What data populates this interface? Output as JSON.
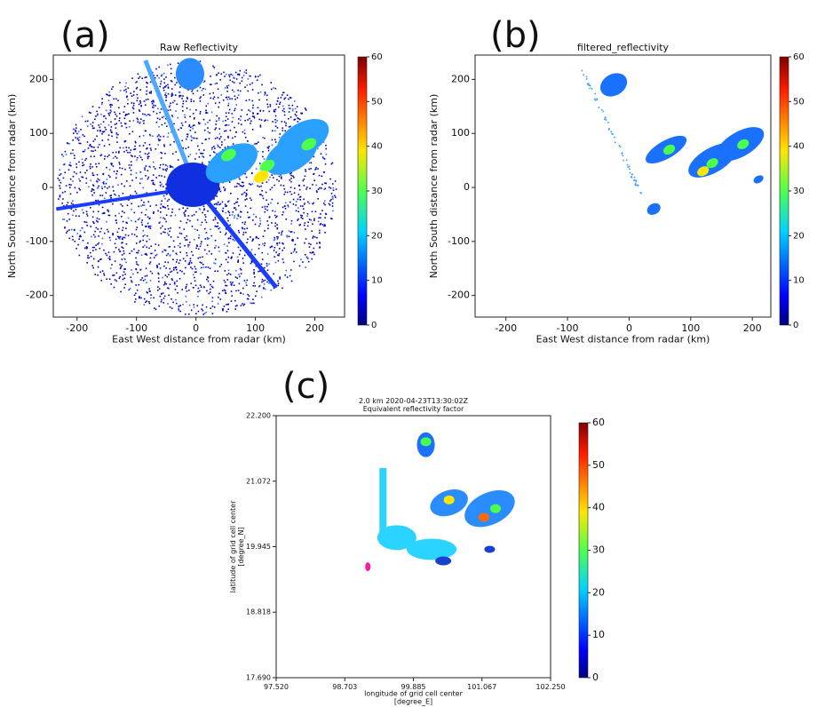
{
  "chart_data": [
    {
      "type": "heatmap",
      "panel_label": "(a)",
      "title": "Raw Reflectivity",
      "xlabel": "East West distance from radar (km)",
      "ylabel": "North South distance from radar (km)",
      "xlim": [
        -240,
        250
      ],
      "ylim": [
        -240,
        245
      ],
      "xticks": [
        -200,
        -100,
        0,
        100,
        200
      ],
      "yticks": [
        -200,
        -100,
        0,
        100,
        200
      ],
      "colormap": "jet",
      "colorbar": {
        "lim": [
          0,
          60
        ],
        "ticks": [
          0,
          10,
          20,
          30,
          40,
          50,
          60
        ]
      }
    },
    {
      "type": "heatmap",
      "panel_label": "(b)",
      "title": "filtered_reflectivity",
      "xlabel": "East West distance from radar (km)",
      "ylabel": "North South distance from radar (km)",
      "xlim": [
        -250,
        230
      ],
      "ylim": [
        -240,
        245
      ],
      "xticks": [
        -200,
        -100,
        0,
        100,
        200
      ],
      "yticks": [
        -200,
        -100,
        0,
        100,
        200
      ],
      "colormap": "jet",
      "colorbar": {
        "lim": [
          0,
          60
        ],
        "ticks": [
          0,
          10,
          20,
          30,
          40,
          50,
          60
        ]
      }
    },
    {
      "type": "heatmap",
      "panel_label": "(c)",
      "title": [
        "2.0 km 2020-04-23T13:30:02Z",
        "Equivalent reflectivity factor"
      ],
      "xlabel": [
        "longitude of grid cell center",
        "[degree_E]"
      ],
      "ylabel": [
        "latitude of grid cell center",
        "[degree_N]"
      ],
      "xlim": [
        97.52,
        102.25
      ],
      "ylim": [
        17.69,
        22.2
      ],
      "xticks": [
        {
          "value": 97.52,
          "label": "97.520"
        },
        {
          "value": 98.703,
          "label": "98.703"
        },
        {
          "value": 99.885,
          "label": "99.885"
        },
        {
          "value": 101.067,
          "label": "101.067"
        },
        {
          "value": 102.25,
          "label": "102.250"
        }
      ],
      "yticks": [
        {
          "value": 17.69,
          "label": "17.690"
        },
        {
          "value": 18.818,
          "label": "18.818"
        },
        {
          "value": 19.945,
          "label": "19.945"
        },
        {
          "value": 21.072,
          "label": "21.072"
        },
        {
          "value": 22.2,
          "label": "22.200"
        }
      ],
      "colormap": "jet",
      "colorbar": {
        "lim": [
          0,
          60
        ],
        "ticks": [
          0,
          10,
          20,
          30,
          40,
          50,
          60
        ]
      }
    }
  ]
}
